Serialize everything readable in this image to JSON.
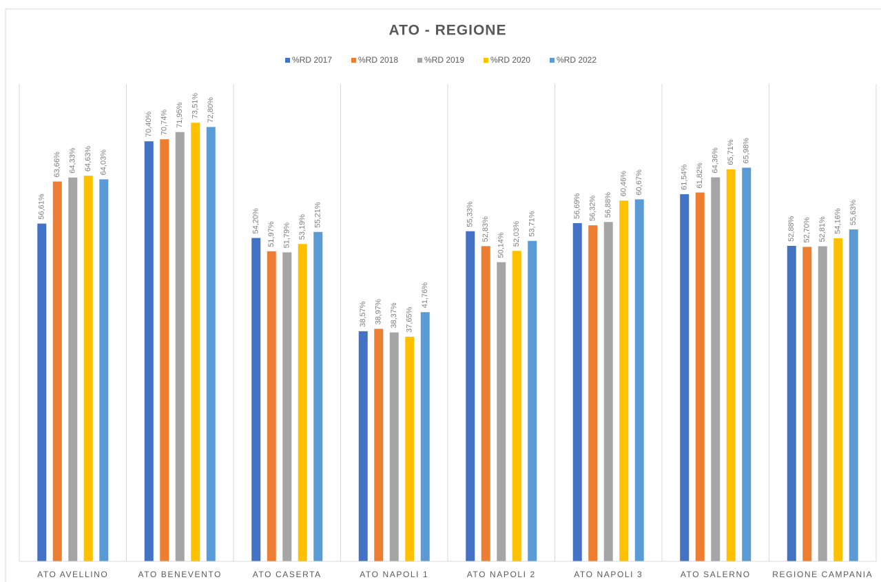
{
  "chart_data": {
    "type": "bar",
    "title": "ATO - REGIONE",
    "categories": [
      "ATO AVELLINO",
      "ATO BENEVENTO",
      "ATO CASERTA",
      "ATO NAPOLI 1",
      "ATO NAPOLI 2",
      "ATO NAPOLI 3",
      "ATO SALERNO",
      "REGIONE CAMPANIA"
    ],
    "series": [
      {
        "name": "%RD 2017",
        "color": "#4472c4",
        "values": [
          56.61,
          70.4,
          54.2,
          38.57,
          55.33,
          56.69,
          61.54,
          52.88
        ],
        "value_labels": [
          "56,61%",
          "70,40%",
          "54,20%",
          "38,57%",
          "55,33%",
          "56,69%",
          "61,54%",
          "52,88%"
        ]
      },
      {
        "name": "%RD 2018",
        "color": "#ed7d31",
        "values": [
          63.66,
          70.74,
          51.97,
          38.97,
          52.83,
          56.32,
          61.82,
          52.7
        ],
        "value_labels": [
          "63,66%",
          "70,74%",
          "51,97%",
          "38,97%",
          "52,83%",
          "56,32%",
          "61,82%",
          "52,70%"
        ]
      },
      {
        "name": "%RD 2019",
        "color": "#a5a5a5",
        "values": [
          64.33,
          71.95,
          51.79,
          38.37,
          50.14,
          56.88,
          64.36,
          52.81
        ],
        "value_labels": [
          "64,33%",
          "71,95%",
          "51,79%",
          "38,37%",
          "50,14%",
          "56,88%",
          "64,36%",
          "52,81%"
        ]
      },
      {
        "name": "%RD 2020",
        "color": "#ffc000",
        "values": [
          64.63,
          73.51,
          53.19,
          37.65,
          52.03,
          60.46,
          65.71,
          54.16
        ],
        "value_labels": [
          "64,63%",
          "73,51%",
          "53,19%",
          "37,65%",
          "52,03%",
          "60,46%",
          "65,71%",
          "54,16%"
        ]
      },
      {
        "name": "%RD 2022",
        "color": "#5b9bd5",
        "values": [
          64.03,
          72.8,
          55.21,
          41.76,
          53.71,
          60.67,
          65.98,
          55.63
        ],
        "value_labels": [
          "64,03%",
          "72,80%",
          "55,21%",
          "41,76%",
          "53,71%",
          "60,67%",
          "65,98%",
          "55,63%"
        ]
      }
    ],
    "ylim": [
      0,
      80
    ],
    "legend": "top"
  }
}
